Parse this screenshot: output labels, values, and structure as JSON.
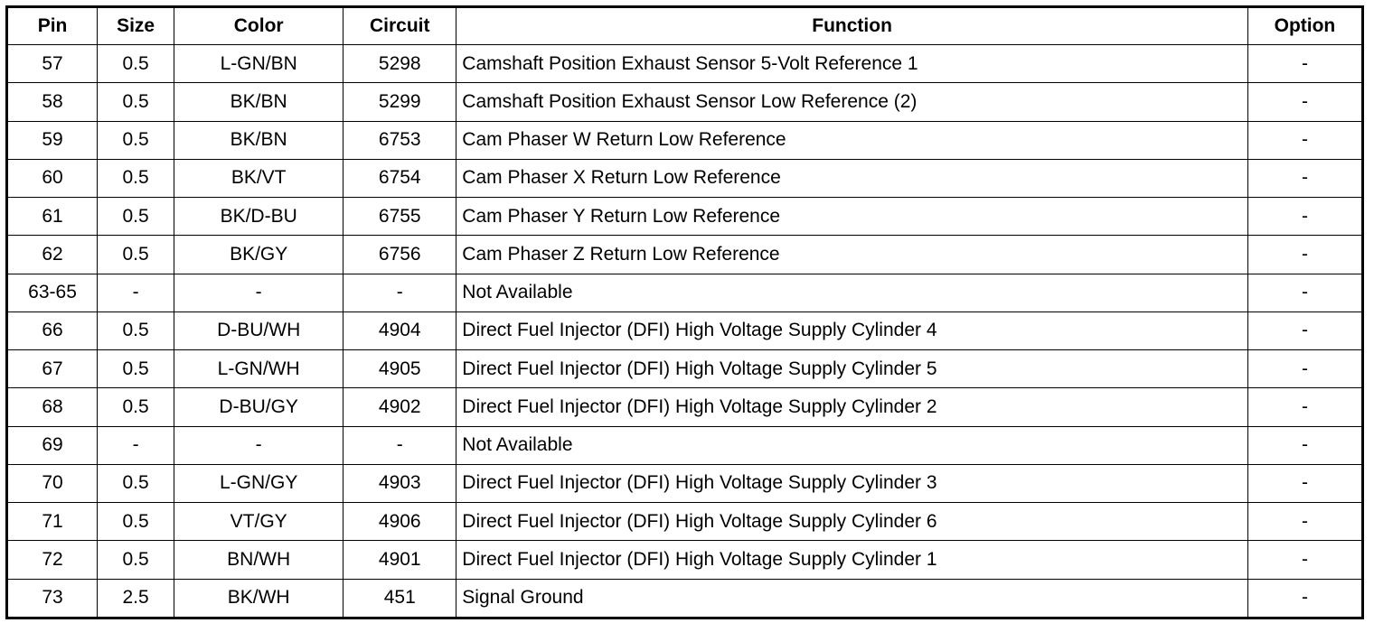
{
  "table": {
    "headers": [
      "Pin",
      "Size",
      "Color",
      "Circuit",
      "Function",
      "Option"
    ],
    "rows": [
      [
        "57",
        "0.5",
        "L-GN/BN",
        "5298",
        "Camshaft Position Exhaust Sensor 5-Volt Reference 1",
        "-"
      ],
      [
        "58",
        "0.5",
        "BK/BN",
        "5299",
        "Camshaft Position Exhaust Sensor Low Reference (2)",
        "-"
      ],
      [
        "59",
        "0.5",
        "BK/BN",
        "6753",
        "Cam Phaser W Return Low Reference",
        "-"
      ],
      [
        "60",
        "0.5",
        "BK/VT",
        "6754",
        "Cam Phaser X Return Low Reference",
        "-"
      ],
      [
        "61",
        "0.5",
        "BK/D-BU",
        "6755",
        "Cam Phaser Y Return Low Reference",
        "-"
      ],
      [
        "62",
        "0.5",
        "BK/GY",
        "6756",
        "Cam Phaser Z Return Low Reference",
        "-"
      ],
      [
        "63-65",
        "-",
        "-",
        "-",
        "Not Available",
        "-"
      ],
      [
        "66",
        "0.5",
        "D-BU/WH",
        "4904",
        "Direct Fuel Injector (DFI) High Voltage Supply Cylinder 4",
        "-"
      ],
      [
        "67",
        "0.5",
        "L-GN/WH",
        "4905",
        "Direct Fuel Injector (DFI) High Voltage Supply Cylinder 5",
        "-"
      ],
      [
        "68",
        "0.5",
        "D-BU/GY",
        "4902",
        "Direct Fuel Injector (DFI) High Voltage Supply Cylinder 2",
        "-"
      ],
      [
        "69",
        "-",
        "-",
        "-",
        "Not Available",
        "-"
      ],
      [
        "70",
        "0.5",
        "L-GN/GY",
        "4903",
        "Direct Fuel Injector (DFI) High Voltage Supply Cylinder 3",
        "-"
      ],
      [
        "71",
        "0.5",
        "VT/GY",
        "4906",
        "Direct Fuel Injector (DFI) High Voltage Supply Cylinder 6",
        "-"
      ],
      [
        "72",
        "0.5",
        "BN/WH",
        "4901",
        "Direct Fuel Injector (DFI) High Voltage Supply Cylinder 1",
        "-"
      ],
      [
        "73",
        "2.5",
        "BK/WH",
        "451",
        "Signal Ground",
        "-"
      ]
    ]
  }
}
